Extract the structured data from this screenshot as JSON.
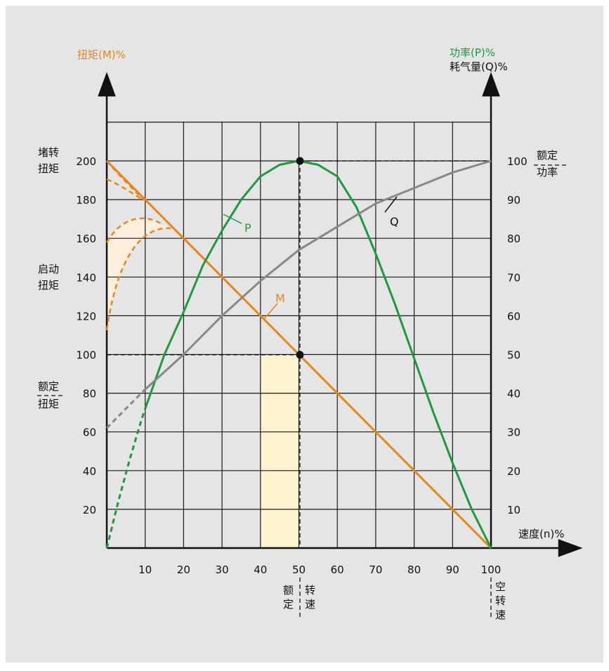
{
  "chart_data": {
    "type": "line",
    "left_axis_label": "扭矩(M)%",
    "right_axis_label_power": "功率(P)%",
    "right_axis_label_air": "耗气量(Q)%",
    "x_axis_label": "速度(n)%",
    "x_ticks": [
      "10",
      "20",
      "30",
      "40",
      "50",
      "60",
      "70",
      "80",
      "90",
      "100"
    ],
    "left_ticks": [
      "20",
      "40",
      "60",
      "80",
      "100",
      "120",
      "140",
      "160",
      "180",
      "200"
    ],
    "right_ticks": [
      "10",
      "20",
      "30",
      "40",
      "50",
      "60",
      "70",
      "80",
      "90",
      "100"
    ],
    "xlim": [
      0,
      100
    ],
    "ylim_left": [
      0,
      200
    ],
    "ylim_right": [
      0,
      100
    ],
    "grid": true,
    "annotations": {
      "stall_torque": [
        "堵转",
        "扭矩"
      ],
      "start_torque": [
        "启动",
        "扭矩"
      ],
      "rated_torque": [
        "额定",
        "扭矩"
      ],
      "rated_power": [
        "额定",
        "功率"
      ],
      "rated_speed_left": [
        "额",
        "定"
      ],
      "rated_speed_right": [
        "转",
        "速"
      ],
      "no_load_speed": [
        "空",
        "转",
        "速"
      ]
    },
    "series": [
      {
        "name": "M",
        "axis": "left",
        "color": "#e8861a",
        "x": [
          0,
          100
        ],
        "y": [
          200,
          0
        ]
      },
      {
        "name": "P",
        "axis": "right",
        "color": "#1e9a3e",
        "x": [
          10,
          15,
          20,
          25,
          30,
          35,
          40,
          45,
          50,
          55,
          60,
          65,
          70,
          75,
          80,
          85,
          90,
          95,
          100
        ],
        "y": [
          36,
          50,
          61,
          73,
          82,
          90,
          96,
          99,
          100,
          99,
          96,
          88,
          76,
          63,
          49,
          35,
          22,
          10,
          0
        ]
      },
      {
        "name": "Q",
        "axis": "right",
        "color": "#888888",
        "x": [
          10,
          20,
          30,
          40,
          50,
          60,
          70,
          80,
          90,
          100
        ],
        "y": [
          41,
          50,
          60,
          69,
          77,
          83,
          89,
          93,
          97,
          100
        ]
      }
    ],
    "dashed_extensions": {
      "P": {
        "x": [
          0,
          3,
          6,
          9,
          10
        ],
        "y": [
          0,
          12,
          23,
          33,
          36
        ]
      },
      "Q": {
        "x": [
          0,
          5,
          10
        ],
        "y": [
          31,
          36,
          41
        ]
      }
    },
    "highlight_band": {
      "x_range": [
        40,
        50
      ],
      "color": "#fdf3cf"
    },
    "rated_point": {
      "x": 50,
      "torque": 100,
      "power": 100
    },
    "colors": {
      "background": "#e5e5e5",
      "torque": "#e8861a",
      "power": "#1e9a3e",
      "air": "#888888",
      "start_fill": "#fdeede",
      "grid": "#1a1a1a"
    }
  }
}
